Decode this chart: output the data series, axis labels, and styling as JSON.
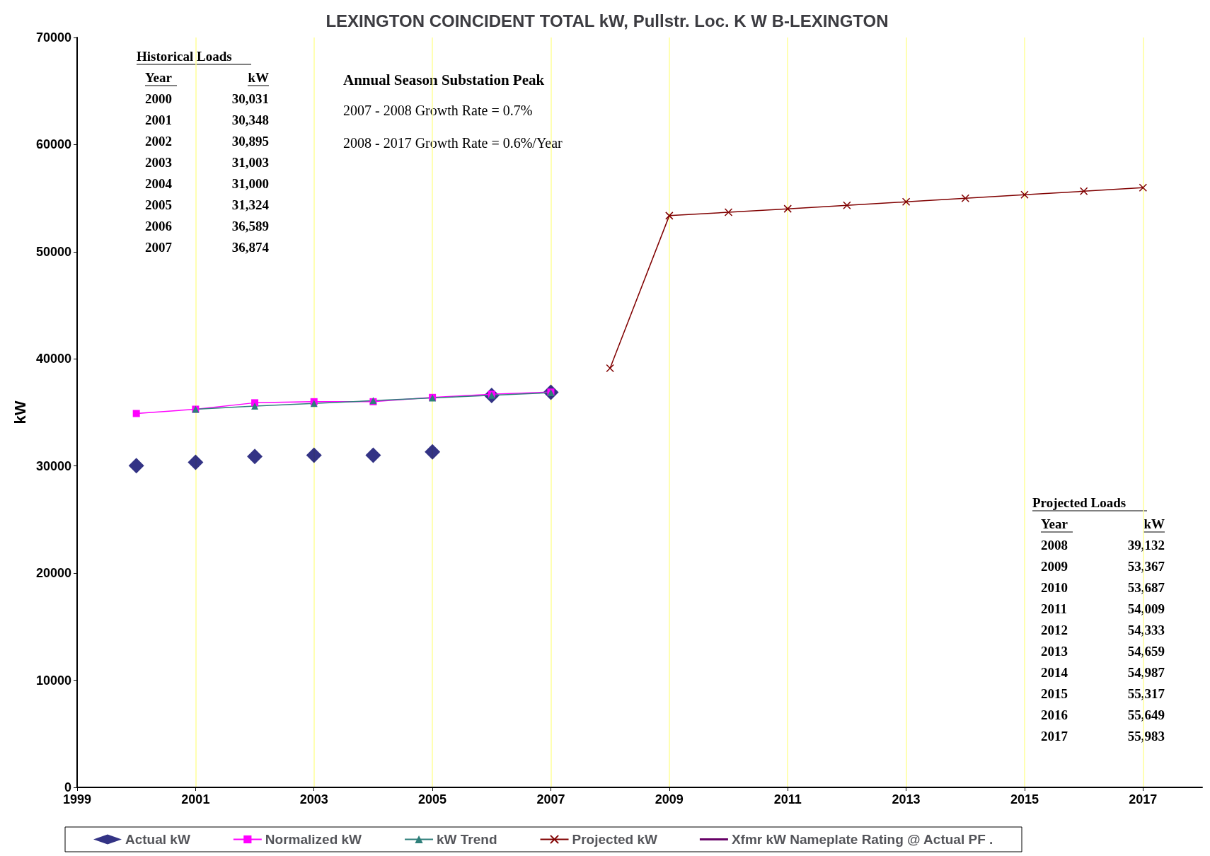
{
  "chart_data": {
    "type": "line",
    "title": "LEXINGTON COINCIDENT TOTAL kW, Pullstr. Loc. K W B-LEXINGTON",
    "ylabel": "kW",
    "xlim": [
      1999,
      2018
    ],
    "xticks": [
      1999,
      2001,
      2003,
      2005,
      2007,
      2009,
      2011,
      2013,
      2015,
      2017
    ],
    "ylim": [
      0,
      70000
    ],
    "yticks": [
      0,
      10000,
      20000,
      30000,
      40000,
      50000,
      60000,
      70000
    ],
    "grid": "x",
    "legend": "bottom",
    "annotations": [
      "Historical Loads",
      "Year",
      "kW",
      "2000",
      "30,031",
      "2001",
      "30,348",
      "2002",
      "30,895",
      "2003",
      "31,003",
      "2004",
      "31,000",
      "2005",
      "31,324",
      "2006",
      "36,589",
      "2007",
      "36,874",
      "Annual Season Substation Peak",
      "2007 - 2008 Growth Rate = 0.7%",
      "2008 - 2017 Growth Rate = 0.6%/Year",
      "Projected Loads",
      "Year",
      "kW",
      "2008",
      "39,132",
      "2009",
      "53,367",
      "2010",
      "53,687",
      "2011",
      "54,009",
      "2012",
      "54,333",
      "2013",
      "54,659",
      "2014",
      "54,987",
      "2015",
      "55,317",
      "2016",
      "55,649",
      "2017",
      "55,983"
    ],
    "series": [
      {
        "name": "Actual kW",
        "type": "scatter",
        "marker": "diamond",
        "color": "#000066",
        "x": [
          2000,
          2001,
          2002,
          2003,
          2004,
          2005,
          2006,
          2007
        ],
        "values": [
          30031,
          30348,
          30895,
          31003,
          31000,
          31324,
          36589,
          36874
        ]
      },
      {
        "name": "Normalized kW",
        "marker": "square",
        "color": "#ff00ff",
        "x": [
          2000,
          2001,
          2002,
          2003,
          2004,
          2005,
          2006,
          2007
        ],
        "values": [
          34900,
          35300,
          35900,
          36000,
          36000,
          36400,
          36700,
          36900
        ]
      },
      {
        "name": "kW Trend",
        "marker": "triangle",
        "color": "#2e7f7a",
        "x": [
          2001,
          2002,
          2003,
          2004,
          2005,
          2006,
          2007
        ],
        "values": [
          35300,
          35600,
          35850,
          36100,
          36350,
          36600,
          36850
        ]
      },
      {
        "name": "Projected kW",
        "marker": "cross",
        "color": "#800000",
        "x": [
          2008,
          2009,
          2010,
          2011,
          2012,
          2013,
          2014,
          2015,
          2016,
          2017
        ],
        "values": [
          39132,
          53367,
          53687,
          54009,
          54333,
          54659,
          54987,
          55317,
          55649,
          55983
        ]
      },
      {
        "name": "Xfmr kW Nameplate Rating @ Actual PF .",
        "marker": "none",
        "color": "#660066"
      }
    ]
  }
}
